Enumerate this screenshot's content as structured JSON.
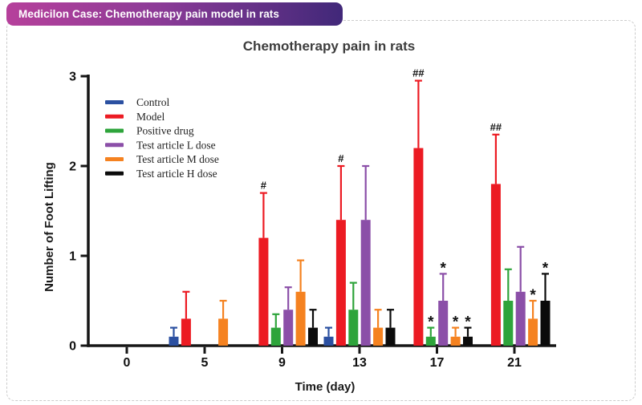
{
  "banner": {
    "label": "Medicilon Case: Chemotherapy pain model in rats",
    "gradient_left": "#b6409b",
    "gradient_right": "#412879"
  },
  "chart": {
    "title": "Chemotherapy pain in rats",
    "xlabel": "Time (day)",
    "ylabel": "Number of Foot Lifting"
  },
  "chart_data": {
    "type": "bar",
    "title": "Chemotherapy pain in rats",
    "xlabel": "Time (day)",
    "ylabel": "Number of Foot Lifting",
    "categories": [
      "0",
      "5",
      "9",
      "13",
      "17",
      "21"
    ],
    "yticks": [
      0,
      1,
      2,
      3
    ],
    "ylim": [
      0,
      3
    ],
    "grid": false,
    "legend_position": "upper-left-inside",
    "error_bars": "upper-only",
    "axis_color": "#161616",
    "series": [
      {
        "name": "Control",
        "color": "#2B50A1",
        "values": [
          0,
          0.1,
          0,
          0.1,
          0,
          0
        ],
        "errors": [
          0,
          0.1,
          0,
          0.1,
          0,
          0
        ],
        "sig": [
          "",
          "",
          "",
          "",
          "",
          ""
        ]
      },
      {
        "name": "Model",
        "color": "#EC1B23",
        "values": [
          0,
          0.3,
          1.2,
          1.4,
          2.2,
          1.8
        ],
        "errors": [
          0,
          0.3,
          0.5,
          0.6,
          0.75,
          0.55
        ],
        "sig": [
          "",
          "",
          "#",
          "#",
          "##",
          "##"
        ]
      },
      {
        "name": "Positive drug",
        "color": "#2EA43B",
        "values": [
          0,
          0,
          0.2,
          0.4,
          0.1,
          0.5
        ],
        "errors": [
          0,
          0,
          0.15,
          0.3,
          0.1,
          0.35
        ],
        "sig": [
          "",
          "",
          "",
          "",
          "*",
          ""
        ]
      },
      {
        "name": "Test article L dose",
        "color": "#8B4FA8",
        "values": [
          0,
          0,
          0.4,
          1.4,
          0.5,
          0.6
        ],
        "errors": [
          0,
          0,
          0.25,
          0.6,
          0.3,
          0.5
        ],
        "sig": [
          "",
          "",
          "",
          "",
          "*",
          ""
        ]
      },
      {
        "name": "Test article M dose",
        "color": "#F58220",
        "values": [
          0,
          0.3,
          0.6,
          0.2,
          0.1,
          0.3
        ],
        "errors": [
          0,
          0.2,
          0.35,
          0.2,
          0.1,
          0.2
        ],
        "sig": [
          "",
          "",
          "",
          "",
          "*",
          "*"
        ]
      },
      {
        "name": "Test article H dose",
        "color": "#0B0B0B",
        "values": [
          0,
          0,
          0.2,
          0.2,
          0.1,
          0.5
        ],
        "errors": [
          0,
          0,
          0.2,
          0.2,
          0.1,
          0.3
        ],
        "sig": [
          "",
          "",
          "",
          "",
          "*",
          "*"
        ]
      }
    ]
  }
}
